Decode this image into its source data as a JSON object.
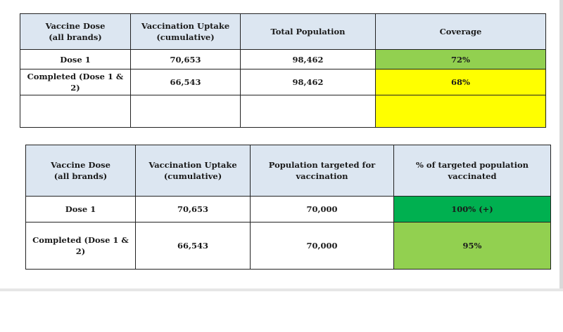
{
  "table1": {
    "headers": [
      "Vaccine Dose\n(all brands)",
      "Vaccination Uptake\n(cumulative)",
      "Total Population",
      "Coverage"
    ],
    "rows": [
      [
        "Dose 1",
        "70,653",
        "98,462",
        "72%"
      ],
      [
        "Completed (Dose 1 & 2)",
        "66,543",
        "98,462",
        "68%"
      ],
      [
        "",
        "",
        "",
        ""
      ]
    ]
  },
  "table2": {
    "headers": [
      "Vaccine Dose\n(all brands)",
      "Vaccination Uptake\n(cumulative)",
      "Population targeted for\nvaccination",
      "% of targeted population\nvaccinated"
    ],
    "rows": [
      [
        "Dose 1",
        "70,653",
        "70,000",
        "100% (+)"
      ],
      [
        "Completed (Dose 1 & 2)",
        "66,543",
        "70,000",
        "95%"
      ]
    ]
  },
  "colors": {
    "header_fill": "#dce6f1",
    "light_green": "#92d050",
    "dark_green": "#00b050",
    "yellow": "#ffff00"
  }
}
